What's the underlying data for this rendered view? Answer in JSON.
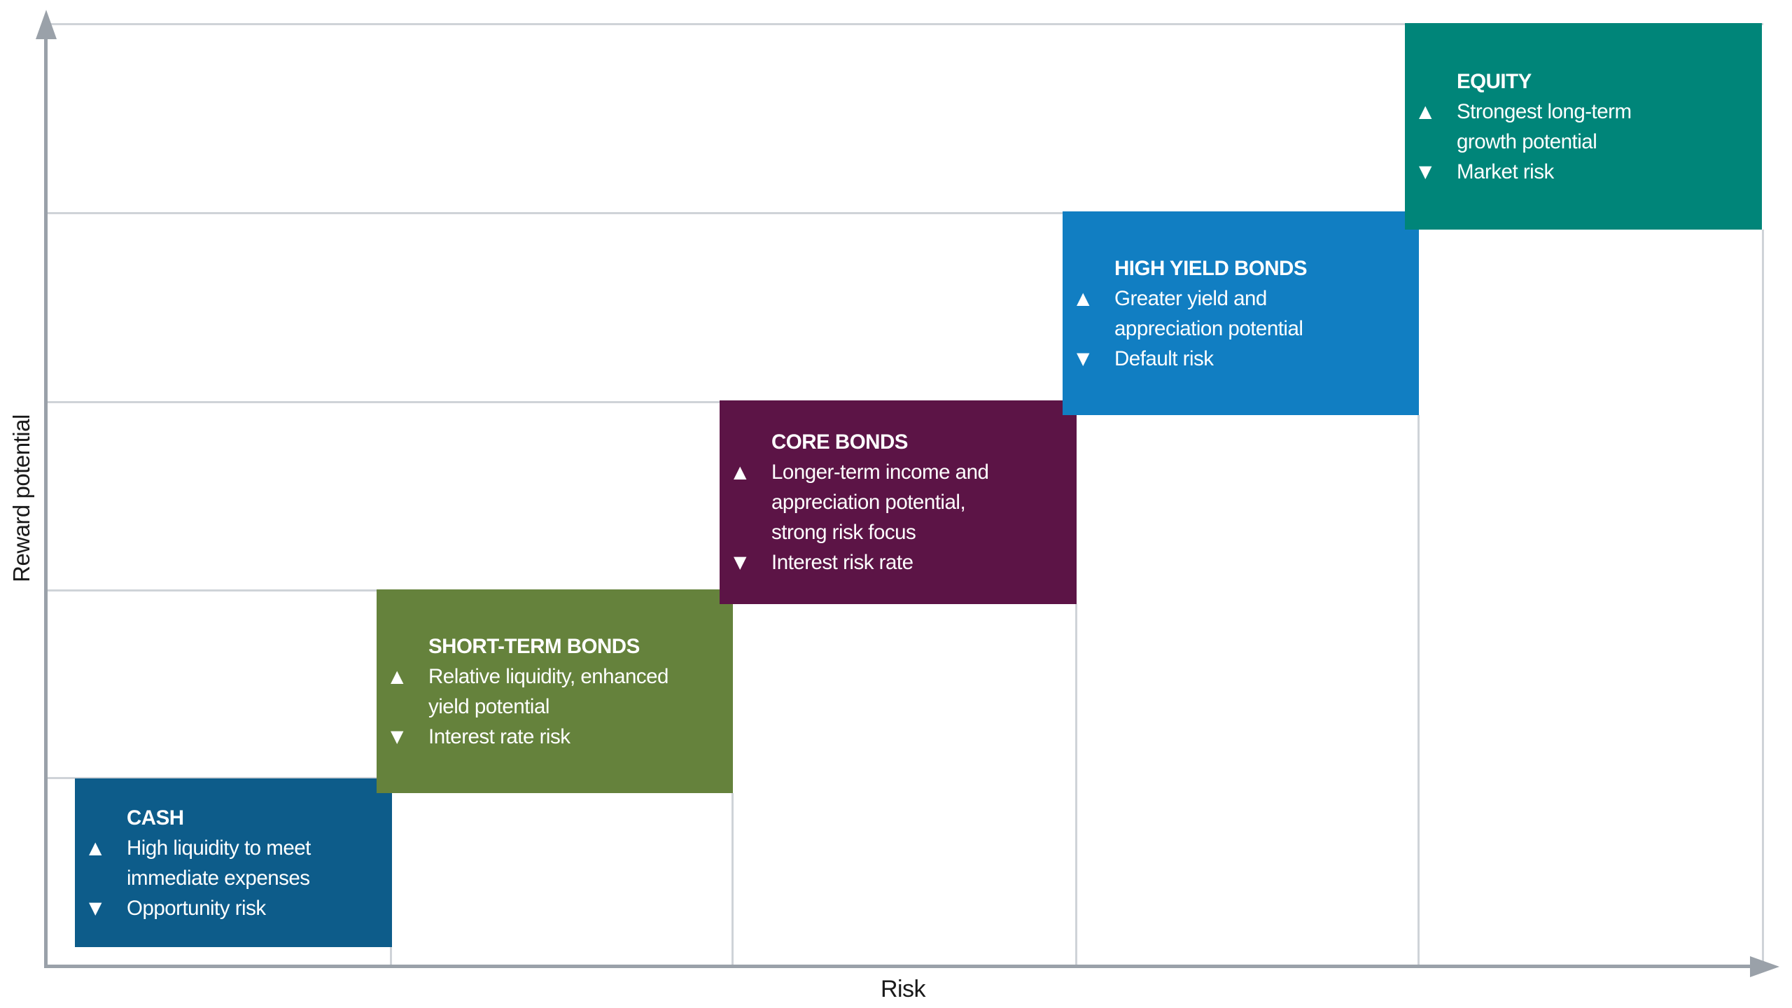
{
  "diagram": {
    "x_axis_label": "Risk",
    "y_axis_label": "Reward potential",
    "glyphs": {
      "up": "▲",
      "down": "▼"
    },
    "colors": {
      "axis": "#9AA1A9",
      "gridline": "#CFD3D8",
      "box_text": "#FFFFFF",
      "axis_label_text": "#1A1A1A",
      "cash": "#0D5C8A",
      "short_term_bonds": "#65823C",
      "core_bonds": "#5C1446",
      "high_yield_bonds": "#117EC2",
      "equity": "#008579"
    },
    "boxes": [
      {
        "id": "cash",
        "title": "CASH",
        "color": "#0D5C8A",
        "pro_lines": [
          "High liquidity to meet",
          "immediate expenses"
        ],
        "con_lines": [
          "Opportunity risk"
        ]
      },
      {
        "id": "short-term-bonds",
        "title": "SHORT-TERM BONDS",
        "color": "#65823C",
        "pro_lines": [
          "Relative liquidity, enhanced",
          "yield potential"
        ],
        "con_lines": [
          "Interest rate risk"
        ]
      },
      {
        "id": "core-bonds",
        "title": "CORE BONDS",
        "color": "#5C1446",
        "pro_lines": [
          "Longer-term income and",
          "appreciation potential,",
          "strong risk focus"
        ],
        "con_lines": [
          "Interest risk rate"
        ]
      },
      {
        "id": "high-yield-bonds",
        "title": "HIGH YIELD BONDS",
        "color": "#117EC2",
        "pro_lines": [
          "Greater yield and",
          "appreciation potential"
        ],
        "con_lines": [
          "Default risk"
        ]
      },
      {
        "id": "equity",
        "title": "EQUITY",
        "color": "#008579",
        "pro_lines": [
          "Strongest long-term",
          "growth potential"
        ],
        "con_lines": [
          "Market risk"
        ]
      }
    ]
  }
}
